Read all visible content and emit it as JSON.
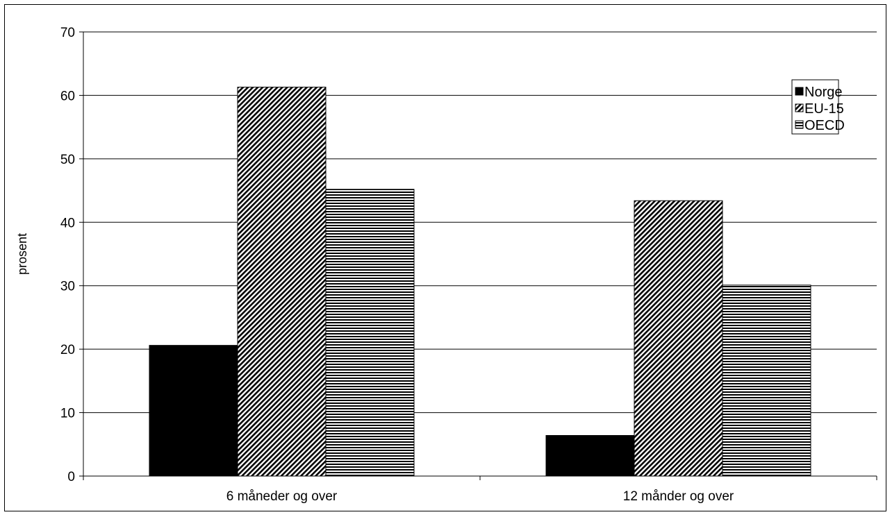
{
  "chart_data": {
    "type": "bar",
    "title": "",
    "xlabel": "",
    "ylabel": "prosent",
    "ylim": [
      0,
      70
    ],
    "yticks": [
      0,
      10,
      20,
      30,
      40,
      50,
      60,
      70
    ],
    "categories": [
      "6 måneder og over",
      "12 månder og over"
    ],
    "series": [
      {
        "name": "Norge",
        "values": [
          20.6,
          6.4
        ],
        "pattern": "solid"
      },
      {
        "name": "EU-15",
        "values": [
          61.3,
          43.4
        ],
        "pattern": "diagonal"
      },
      {
        "name": "OECD",
        "values": [
          45.2,
          30.1
        ],
        "pattern": "horizontal"
      }
    ],
    "grid": true,
    "legend": "top-right"
  },
  "colors": {
    "bar_fill": "#000000",
    "background": "#ffffff",
    "gridline": "#000000"
  }
}
